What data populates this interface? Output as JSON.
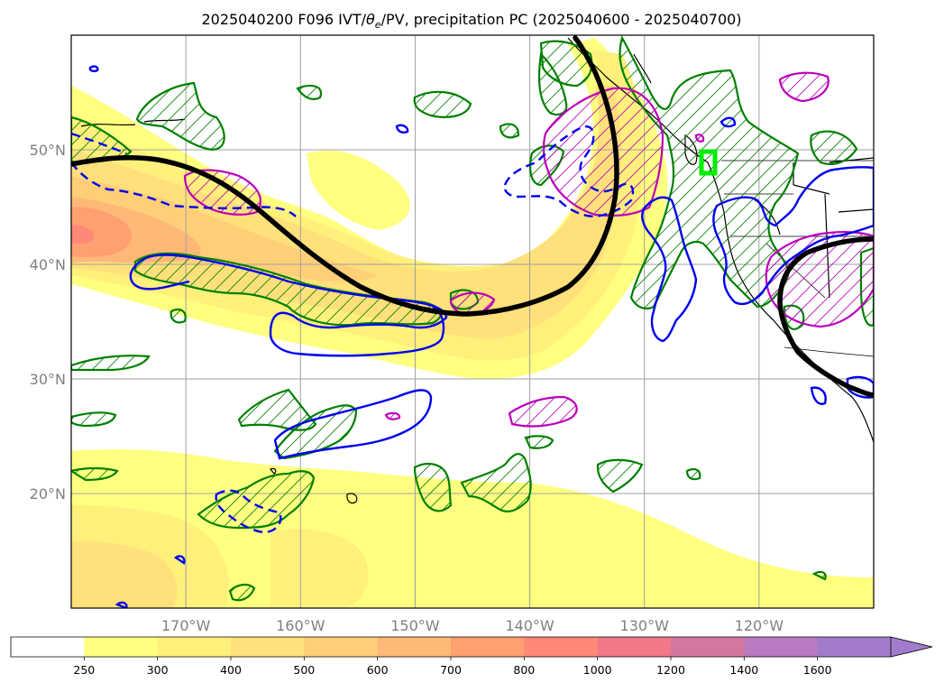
{
  "figure": {
    "title_prefix": "2025040200 F096 IVT/",
    "title_theta": "θ",
    "title_theta_sub": "e",
    "title_suffix": "/PV, precipitation PC (2025040600 - 2025040700)"
  },
  "map": {
    "lon_range": [
      -180,
      -110
    ],
    "lat_range": [
      10,
      60
    ],
    "gridlines": true,
    "lat_tick_labels": [
      {
        "lat": 50,
        "label": "50°N"
      },
      {
        "lat": 40,
        "label": "40°N"
      },
      {
        "lat": 30,
        "label": "30°N"
      },
      {
        "lat": 20,
        "label": "20°N"
      }
    ],
    "lon_tick_labels": [
      {
        "lon": -170,
        "label": "170°W"
      },
      {
        "lon": -160,
        "label": "160°W"
      },
      {
        "lon": -150,
        "label": "150°W"
      },
      {
        "lon": -140,
        "label": "140°W"
      },
      {
        "lon": -130,
        "label": "130°W"
      },
      {
        "lon": -120,
        "label": "120°W"
      }
    ],
    "frame_color": "#7a3b7a",
    "colors": {
      "theta_e_contour": "#000000",
      "pv_positive": "#0000ee",
      "pv_negative_dashed": "#0000ee",
      "precip_hatched": "#008000",
      "precip_magenta": "#bb00bb",
      "target_box": "#00ee00"
    },
    "target_box_center": {
      "lon": -124.2,
      "lat": 48.9
    }
  },
  "colorbar": {
    "levels": [
      "250",
      "300",
      "400",
      "500",
      "600",
      "700",
      "800",
      "1000",
      "1200",
      "1400",
      "1600"
    ],
    "colors": [
      "#ffffff",
      "#ffff80",
      "#fff07c",
      "#ffe07a",
      "#ffcf78",
      "#ffb877",
      "#ffa070",
      "#ff8878",
      "#f07888",
      "#d2789f",
      "#b87ac0",
      "#a27ccc"
    ],
    "extend": "max"
  }
}
